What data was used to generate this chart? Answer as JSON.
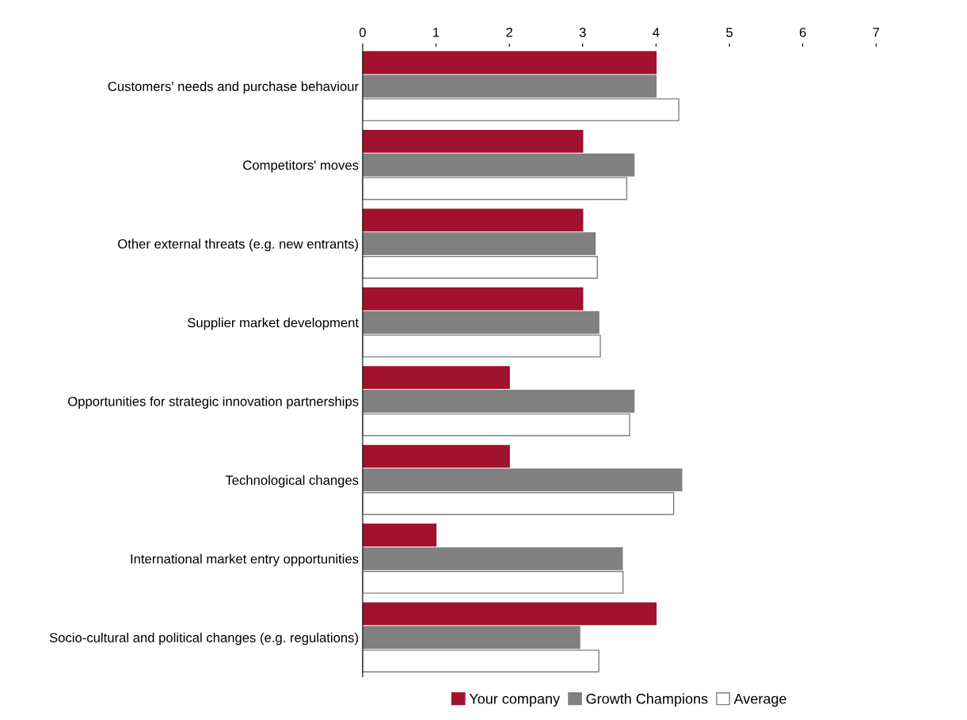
{
  "chart_data": {
    "type": "bar",
    "orientation": "horizontal",
    "categories": [
      "Customers' needs and purchase behaviour",
      "Competitors' moves",
      "Other external threats (e.g. new entrants)",
      "Supplier market development",
      "Opportunities for strategic innovation partnerships",
      "Technological changes",
      "International market entry opportunities",
      "Socio-cultural and political changes (e.g. regulations)"
    ],
    "series": [
      {
        "name": "Your company",
        "color": "#a0122e",
        "values": [
          4.0,
          3.0,
          3.0,
          3.0,
          2.0,
          2.0,
          1.0,
          4.0
        ]
      },
      {
        "name": "Growth Champions",
        "color": "#808080",
        "values": [
          4.0,
          3.7,
          3.17,
          3.22,
          3.7,
          4.35,
          3.54,
          2.96
        ]
      },
      {
        "name": "Average",
        "color": "#ffffff",
        "values": [
          4.31,
          3.6,
          3.2,
          3.24,
          3.64,
          4.24,
          3.55,
          3.22
        ]
      }
    ],
    "xlim": [
      0,
      7
    ],
    "xticks": [
      0,
      1,
      2,
      3,
      4,
      5,
      6,
      7
    ],
    "grid": false,
    "legend": "bottom"
  }
}
